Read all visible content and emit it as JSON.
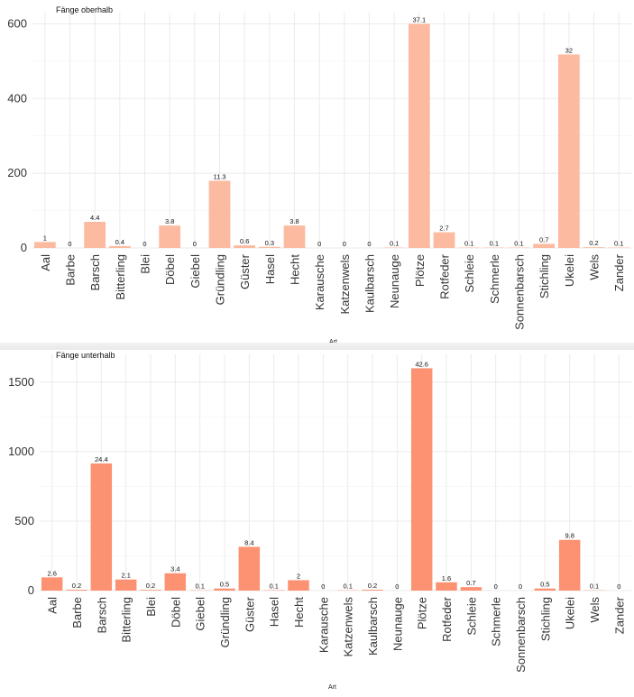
{
  "chart_data": [
    {
      "type": "bar",
      "title": "Fänge oberhalb",
      "xlabel": "Art",
      "ylabel": "",
      "ylim": [
        0,
        630
      ],
      "yticks": [
        0,
        200,
        400,
        600
      ],
      "color": "#fcbba1",
      "categories": [
        "Aal",
        "Barbe",
        "Barsch",
        "Bitterling",
        "Blei",
        "Döbel",
        "Giebel",
        "Gründling",
        "Güster",
        "Hasel",
        "Hecht",
        "Karausche",
        "Katzenwels",
        "Kaulbarsch",
        "Neunauge",
        "Plötze",
        "Rotfeder",
        "Schleie",
        "Schmerle",
        "Sonnenbarsch",
        "Stichling",
        "Ukelei",
        "Wels",
        "Zander"
      ],
      "values": [
        16,
        0,
        70,
        5,
        0,
        60,
        0,
        180,
        7,
        3,
        60,
        0,
        0,
        0,
        1,
        600,
        42,
        1,
        1,
        1,
        11,
        518,
        2,
        1
      ],
      "bar_labels": [
        "1",
        "0",
        "4.4",
        "0.4",
        "0",
        "3.8",
        "0",
        "11.3",
        "0.6",
        "0.3",
        "3.8",
        "0",
        "0",
        "0",
        "0.1",
        "37.1",
        "2.7",
        "0.1",
        "0.1",
        "0.1",
        "0.7",
        "32",
        "0.2",
        "0.1"
      ]
    },
    {
      "type": "bar",
      "title": "Fänge unterhalb",
      "xlabel": "Art",
      "ylabel": "",
      "ylim": [
        0,
        1700
      ],
      "yticks": [
        0,
        500,
        1000,
        1500
      ],
      "color": "#fc9272",
      "categories": [
        "Aal",
        "Barbe",
        "Barsch",
        "Bitterling",
        "Blei",
        "Döbel",
        "Giebel",
        "Gründling",
        "Güster",
        "Hasel",
        "Hecht",
        "Karausche",
        "Katzenwels",
        "Kaulbarsch",
        "Neunauge",
        "Plötze",
        "Rotfeder",
        "Schleie",
        "Schmerle",
        "Sonnenbarsch",
        "Stichling",
        "Ukelei",
        "Wels",
        "Zander"
      ],
      "values": [
        95,
        6,
        915,
        80,
        5,
        125,
        2,
        15,
        315,
        3,
        75,
        0,
        2,
        6,
        0,
        1600,
        60,
        25,
        0,
        0,
        15,
        365,
        2,
        0
      ],
      "bar_labels": [
        "2.6",
        "0.2",
        "24.4",
        "2.1",
        "0.2",
        "3.4",
        "0.1",
        "0.5",
        "8.4",
        "0.1",
        "2",
        "0",
        "0.1",
        "0.2",
        "0",
        "42.6",
        "1.6",
        "0.7",
        "0",
        "0",
        "0.5",
        "9.8",
        "0.1",
        "0"
      ]
    }
  ]
}
